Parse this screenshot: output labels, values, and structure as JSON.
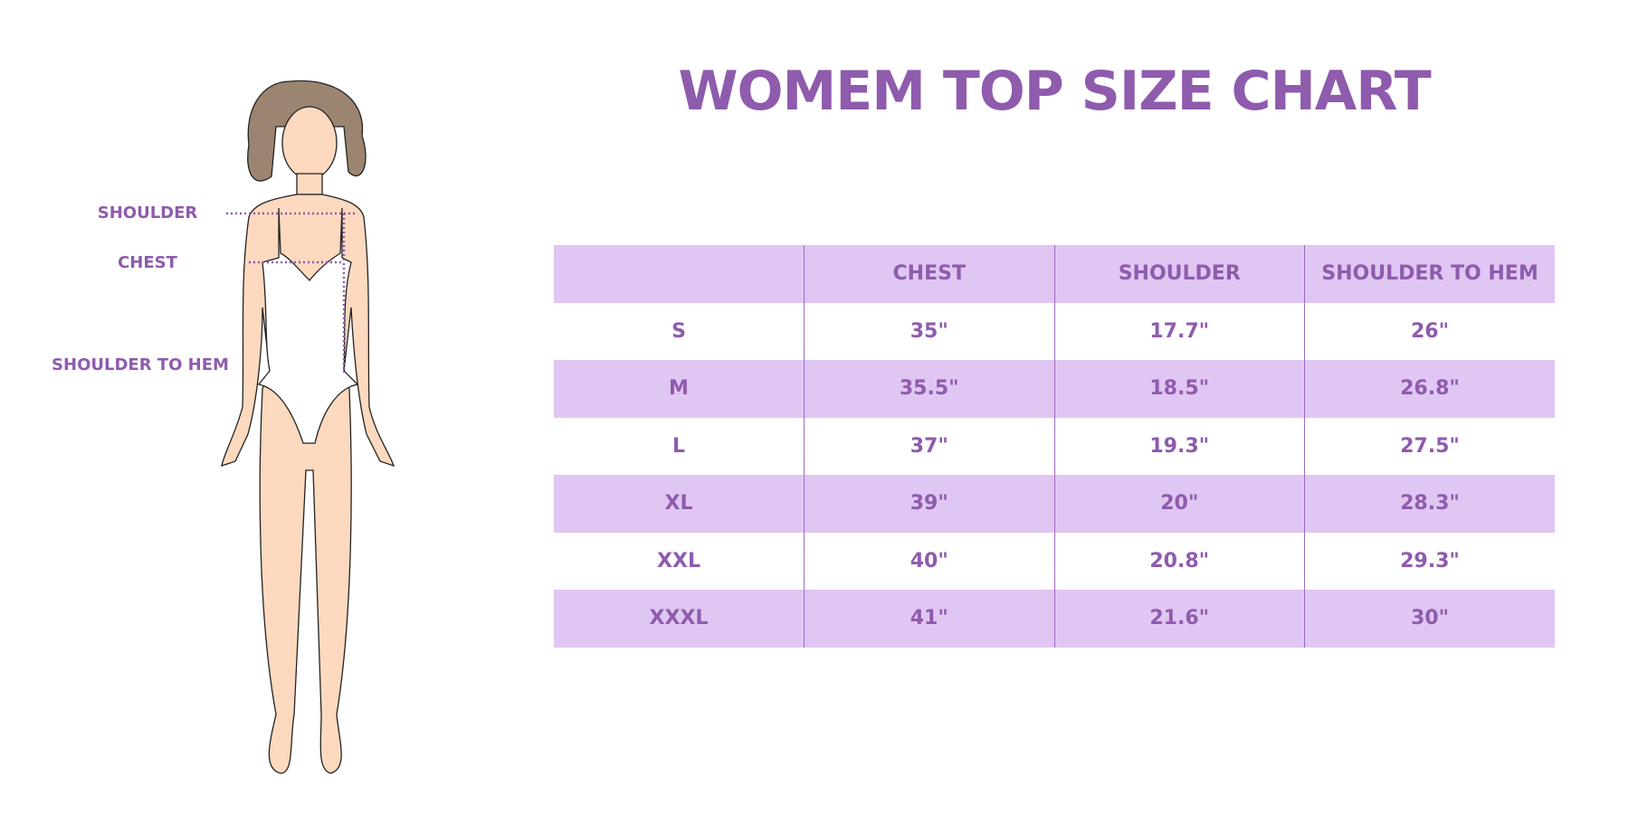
{
  "title": "WOMEM TOP SIZE CHART",
  "figure_labels": {
    "shoulder": "SHOULDER",
    "chest": "CHEST",
    "shoulder_to_hem": "SHOULDER TO HEM"
  },
  "table": {
    "headers": [
      "",
      "CHEST",
      "SHOULDER",
      "SHOULDER TO HEM"
    ],
    "rows": [
      [
        "S",
        "35\"",
        "17.7\"",
        "26\""
      ],
      [
        "M",
        "35.5\"",
        "18.5\"",
        "26.8\""
      ],
      [
        "L",
        "37\"",
        "19.3\"",
        "27.5\""
      ],
      [
        "XL",
        "39\"",
        "20\"",
        "28.3\""
      ],
      [
        "XXL",
        "40\"",
        "20.8\"",
        "29.3\""
      ],
      [
        "XXXL",
        "41\"",
        "21.6\"",
        "30\""
      ]
    ]
  },
  "colors": {
    "accent": "#8e5bad",
    "row_fill": "#e0c6f2",
    "skin": "#fcd9bf",
    "hair": "#9c8570"
  }
}
